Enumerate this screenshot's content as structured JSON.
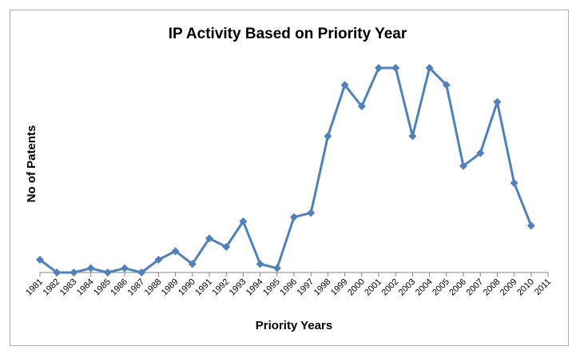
{
  "chart_data": {
    "type": "line",
    "title": "IP Activity Based on Priority Year",
    "xlabel": "Priority Years",
    "ylabel": "No of Patents",
    "categories": [
      "1981",
      "1982",
      "1983",
      "1984",
      "1985",
      "1986",
      "1987",
      "1988",
      "1989",
      "1990",
      "1991",
      "1992",
      "1993",
      "1994",
      "1995",
      "1996",
      "1997",
      "1998",
      "1999",
      "2000",
      "2001",
      "2002",
      "2003",
      "2004",
      "2005",
      "2006",
      "2007",
      "2008",
      "2009",
      "2010",
      "2011"
    ],
    "series": [
      {
        "name": "No of Patents",
        "values": [
          3,
          0,
          0,
          1,
          0,
          1,
          0,
          3,
          5,
          2,
          8,
          6,
          12,
          2,
          1,
          13,
          14,
          32,
          44,
          39,
          48,
          48,
          32,
          48,
          44,
          25,
          28,
          40,
          21,
          11,
          null
        ]
      }
    ],
    "ylim": [
      0,
      48
    ],
    "grid": false,
    "legend": "none",
    "color": "#4f81bd"
  }
}
